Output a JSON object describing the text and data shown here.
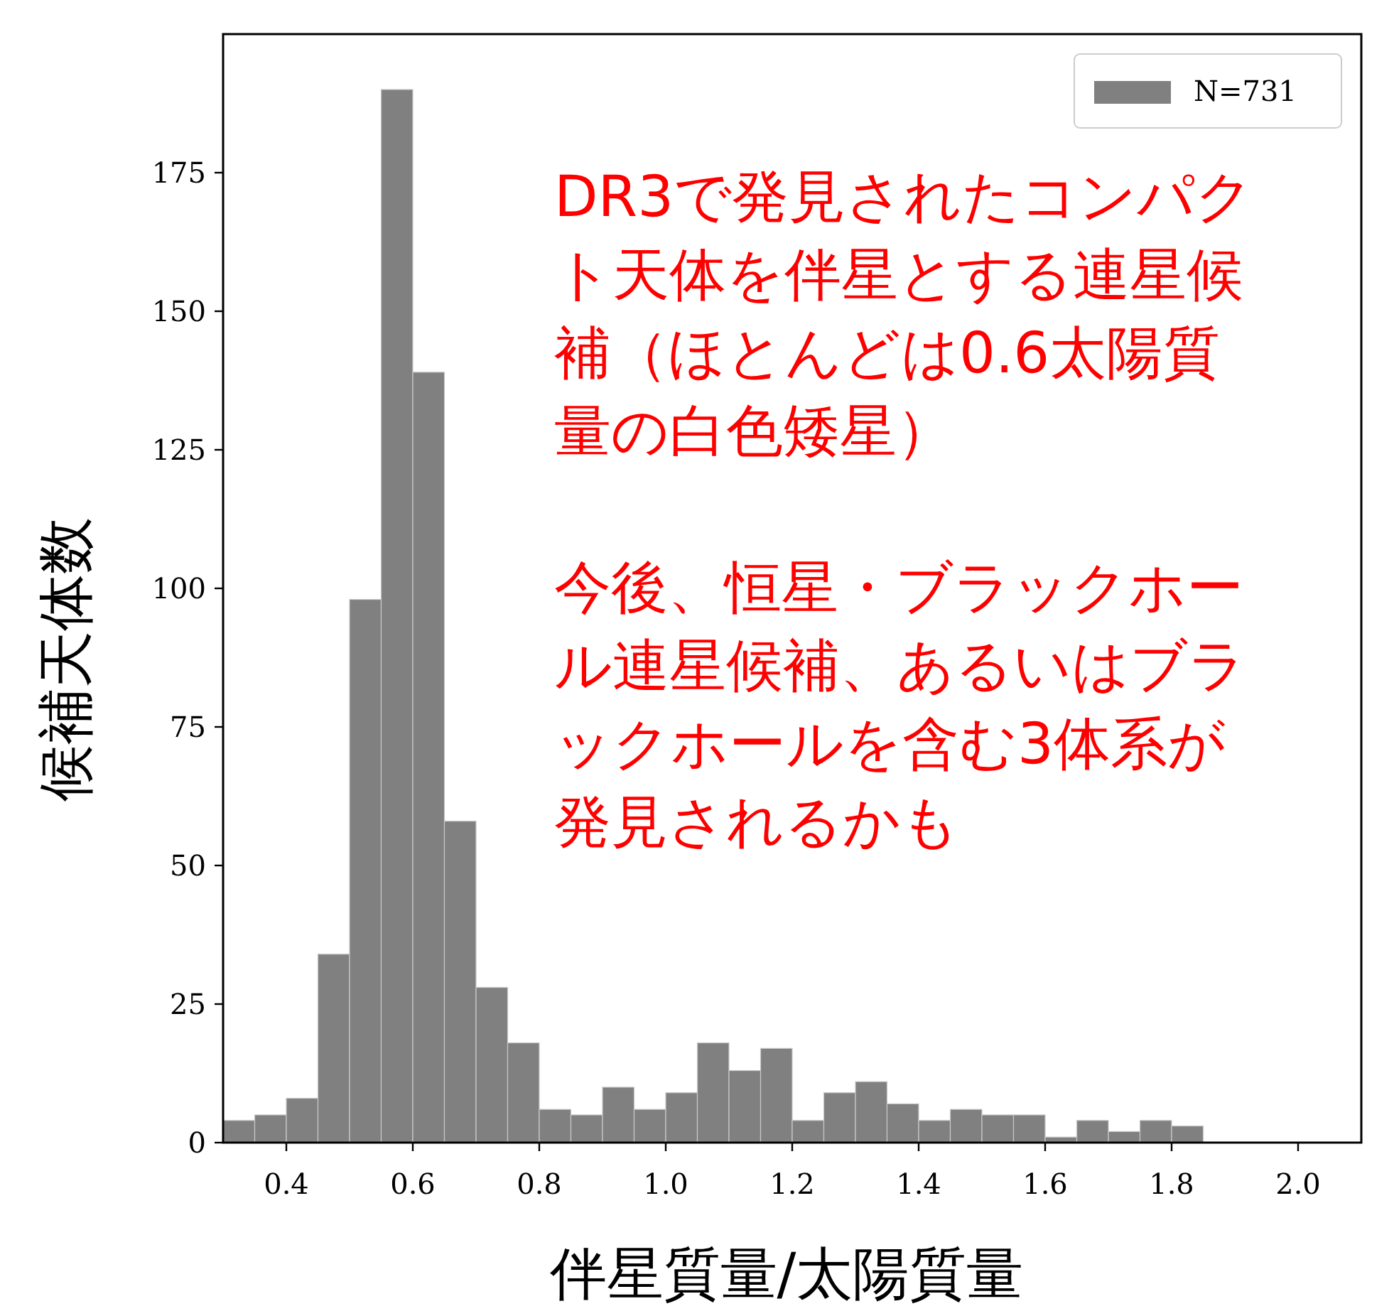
{
  "chart_data": {
    "type": "histogram",
    "xlabel": "伴星質量/太陽質量",
    "ylabel": "候補天体数",
    "bins": [
      0.3,
      0.35,
      0.4,
      0.45,
      0.5,
      0.55,
      0.6,
      0.65,
      0.7,
      0.75,
      0.8,
      0.85,
      0.9,
      0.95,
      1.0,
      1.05,
      1.1,
      1.15,
      1.2,
      1.25,
      1.3,
      1.35,
      1.4,
      1.45,
      1.5,
      1.55,
      1.6,
      1.65,
      1.7,
      1.75,
      1.8,
      1.85
    ],
    "series": [
      {
        "name": "N=731",
        "color": "#808080",
        "values": [
          4,
          5,
          8,
          34,
          98,
          190,
          139,
          58,
          28,
          18,
          6,
          5,
          10,
          6,
          9,
          18,
          13,
          17,
          4,
          9,
          11,
          7,
          4,
          6,
          5,
          5,
          1,
          4,
          2,
          4,
          3
        ]
      }
    ],
    "xlim": [
      0.3,
      2.1
    ],
    "xticks": [
      {
        "value": 0.4,
        "label": "0.4"
      },
      {
        "value": 0.6,
        "label": "0.6"
      },
      {
        "value": 0.8,
        "label": "0.8"
      },
      {
        "value": 1.0,
        "label": "1.0"
      },
      {
        "value": 1.2,
        "label": "1.2"
      },
      {
        "value": 1.4,
        "label": "1.4"
      },
      {
        "value": 1.6,
        "label": "1.6"
      },
      {
        "value": 1.8,
        "label": "1.8"
      },
      {
        "value": 2.0,
        "label": "2.0"
      }
    ],
    "ylim": [
      0,
      200
    ],
    "yticks": [
      0,
      25,
      50,
      75,
      100,
      125,
      150,
      175
    ],
    "legend": "top right",
    "grid": false,
    "annotations": [
      "DR3で発見されたコンパクト天体を伴星とする連星候補（ほとんどは0.6太陽質量の白色矮星）",
      "今後、恒星・ブラックホール連星候補、あるいはブラックホールを含む3体系が発見されるかも"
    ]
  }
}
